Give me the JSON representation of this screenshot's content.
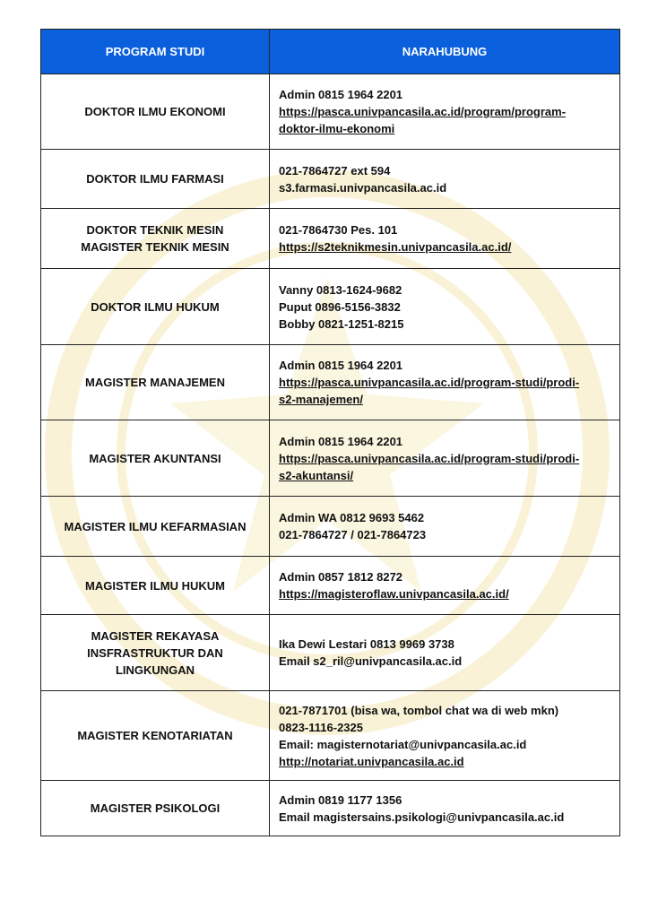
{
  "header": {
    "program_studi": "PROGRAM STUDI",
    "narahubung": "NARAHUBUNG"
  },
  "colors": {
    "header_bg": "#0a5fdc",
    "watermark": "#f3e7a8"
  },
  "rows": [
    {
      "program": [
        "DOKTOR ILMU EKONOMI"
      ],
      "contact": [
        {
          "text": "Admin 0815 1964 2201",
          "link": false
        },
        {
          "text": "https://pasca.univpancasila.ac.id/program/program-",
          "link": true
        },
        {
          "text": "doktor-ilmu-ekonomi",
          "link": true
        }
      ]
    },
    {
      "program": [
        "DOKTOR ILMU FARMASI"
      ],
      "contact": [
        {
          "text": "021-7864727 ext 594",
          "link": false
        },
        {
          "text": "s3.farmasi.univpancasila.ac.id",
          "link": false
        }
      ]
    },
    {
      "program": [
        "DOKTOR TEKNIK MESIN",
        "MAGISTER TEKNIK MESIN"
      ],
      "contact": [
        {
          "text": "021-7864730 Pes. 101",
          "link": false
        },
        {
          "text": "https://s2teknikmesin.univpancasila.ac.id/",
          "link": true
        }
      ]
    },
    {
      "program": [
        "DOKTOR ILMU HUKUM"
      ],
      "contact": [
        {
          "text": "Vanny 0813-1624-9682",
          "link": false
        },
        {
          "text": "Puput 0896-5156-3832",
          "link": false
        },
        {
          "text": "Bobby 0821-1251-8215",
          "link": false
        }
      ]
    },
    {
      "program": [
        "MAGISTER MANAJEMEN"
      ],
      "contact": [
        {
          "text": "Admin 0815 1964 2201",
          "link": false
        },
        {
          "text": "https://pasca.univpancasila.ac.id/program-studi/prodi-",
          "link": true
        },
        {
          "text": "s2-manajemen/",
          "link": true
        }
      ]
    },
    {
      "program": [
        "MAGISTER AKUNTANSI"
      ],
      "contact": [
        {
          "text": "Admin 0815 1964 2201",
          "link": false
        },
        {
          "text": "https://pasca.univpancasila.ac.id/program-studi/prodi-",
          "link": true
        },
        {
          "text": "s2-akuntansi/",
          "link": true
        }
      ]
    },
    {
      "program": [
        "MAGISTER ILMU KEFARMASIAN"
      ],
      "contact": [
        {
          "text": "Admin WA 0812 9693 5462",
          "link": false
        },
        {
          "text": "021-7864727 / 021-7864723",
          "link": false
        }
      ]
    },
    {
      "program": [
        "MAGISTER ILMU HUKUM"
      ],
      "contact": [
        {
          "text": "Admin 0857 1812 8272",
          "link": false
        },
        {
          "text": "https://magisteroflaw.univpancasila.ac.id/",
          "link": true
        }
      ]
    },
    {
      "program": [
        "MAGISTER REKAYASA",
        "INSFRASTRUKTUR DAN",
        "LINGKUNGAN"
      ],
      "contact": [
        {
          "text": "Ika Dewi Lestari 0813 9969 3738",
          "link": false
        },
        {
          "text": "Email s2_ril@univpancasila.ac.id",
          "link": false
        }
      ]
    },
    {
      "program": [
        "MAGISTER KENOTARIATAN"
      ],
      "contact": [
        {
          "text": "021-7871701 (bisa wa, tombol chat wa di web mkn)",
          "link": false
        },
        {
          "text": "0823-1116-2325",
          "link": false
        },
        {
          "text": "Email: magisternotariat@univpancasila.ac.id",
          "link": false
        },
        {
          "text": "http://notariat.univpancasila.ac.id",
          "link": true
        }
      ]
    },
    {
      "program": [
        "MAGISTER PSIKOLOGI"
      ],
      "contact": [
        {
          "text": "Admin 0819 1177 1356",
          "link": false
        },
        {
          "text": "Email magistersains.psikologi@univpancasila.ac.id",
          "link": false
        }
      ]
    }
  ]
}
